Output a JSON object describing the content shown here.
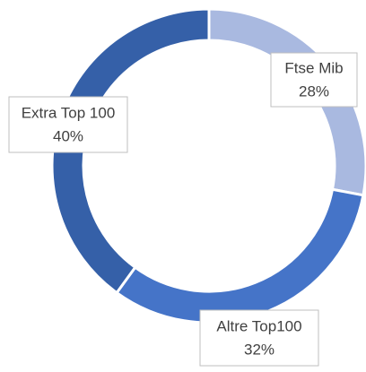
{
  "chart_data": {
    "type": "donut",
    "categories": [
      "Ftse Mib",
      "Altre Top100",
      "Extra Top 100"
    ],
    "values": [
      28,
      32,
      40
    ],
    "value_labels": [
      "28%",
      "32%",
      "40%"
    ],
    "colors": [
      "#a9b9e0",
      "#4574c8",
      "#3560a8"
    ]
  }
}
